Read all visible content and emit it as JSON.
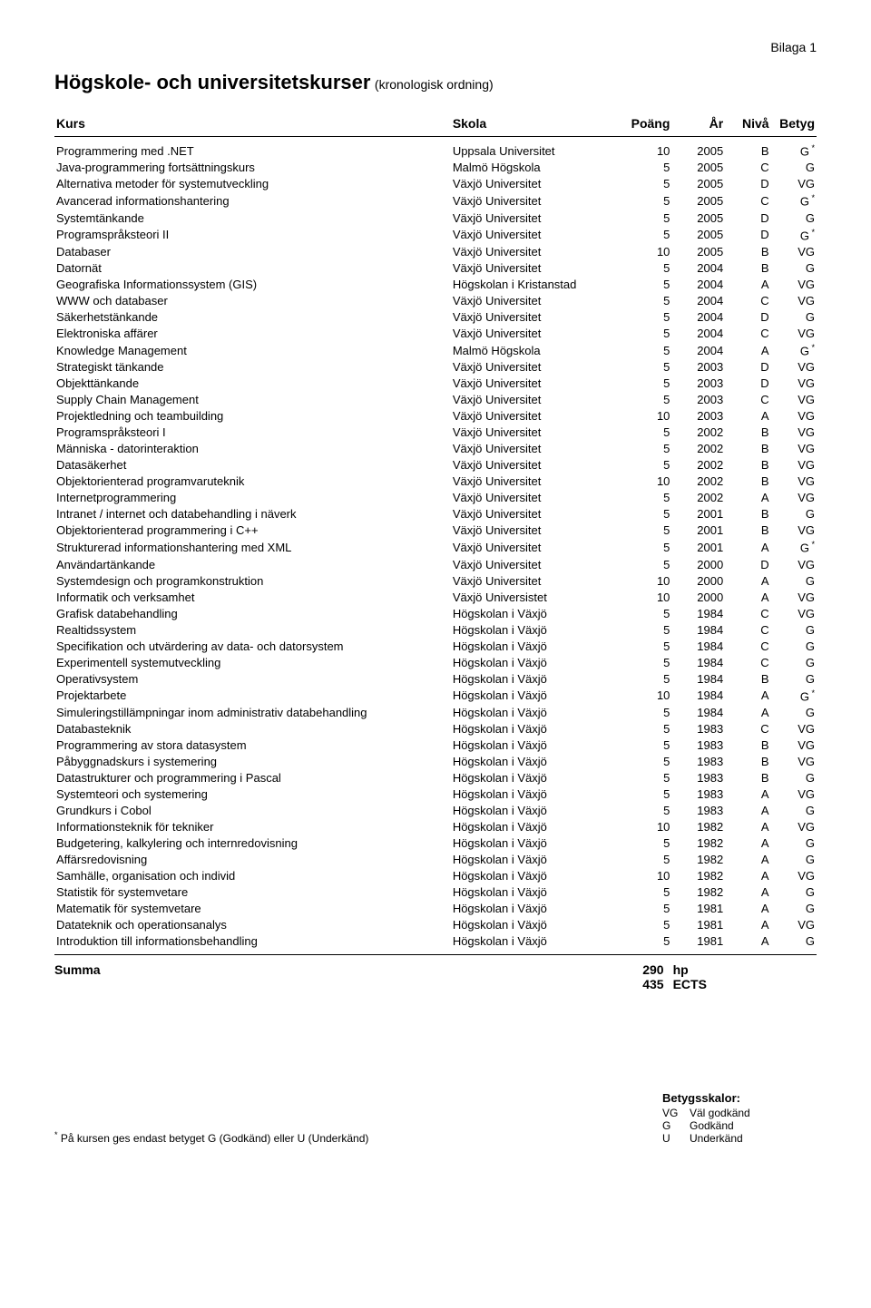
{
  "appendix_label": "Bilaga 1",
  "title_main": "Högskole- och universitetskurser",
  "title_sub": "(kronologisk ordning)",
  "columns": [
    "Kurs",
    "Skola",
    "Poäng",
    "År",
    "Nivå",
    "Betyg"
  ],
  "rows": [
    {
      "kurs": "Programmering med .NET",
      "skola": "Uppsala Universitet",
      "poang": "10",
      "ar": "2005",
      "niva": "B",
      "betyg": "G",
      "star": true
    },
    {
      "kurs": "Java-programmering fortsättningskurs",
      "skola": "Malmö Högskola",
      "poang": "5",
      "ar": "2005",
      "niva": "C",
      "betyg": "G",
      "star": false
    },
    {
      "kurs": "Alternativa metoder för systemutveckling",
      "skola": "Växjö Universitet",
      "poang": "5",
      "ar": "2005",
      "niva": "D",
      "betyg": "VG",
      "star": false
    },
    {
      "kurs": "Avancerad informationshantering",
      "skola": "Växjö Universitet",
      "poang": "5",
      "ar": "2005",
      "niva": "C",
      "betyg": "G",
      "star": true
    },
    {
      "kurs": "Systemtänkande",
      "skola": "Växjö Universitet",
      "poang": "5",
      "ar": "2005",
      "niva": "D",
      "betyg": "G",
      "star": false
    },
    {
      "kurs": "Programspråksteori II",
      "skola": "Växjö Universitet",
      "poang": "5",
      "ar": "2005",
      "niva": "D",
      "betyg": "G",
      "star": true
    },
    {
      "kurs": "Databaser",
      "skola": "Växjö Universitet",
      "poang": "10",
      "ar": "2005",
      "niva": "B",
      "betyg": "VG",
      "star": false
    },
    {
      "kurs": "Datornät",
      "skola": "Växjö Universitet",
      "poang": "5",
      "ar": "2004",
      "niva": "B",
      "betyg": "G",
      "star": false
    },
    {
      "kurs": "Geografiska Informationssystem (GIS)",
      "skola": "Högskolan i Kristanstad",
      "poang": "5",
      "ar": "2004",
      "niva": "A",
      "betyg": "VG",
      "star": false
    },
    {
      "kurs": "WWW och databaser",
      "skola": "Växjö Universitet",
      "poang": "5",
      "ar": "2004",
      "niva": "C",
      "betyg": "VG",
      "star": false
    },
    {
      "kurs": "Säkerhetstänkande",
      "skola": "Växjö Universitet",
      "poang": "5",
      "ar": "2004",
      "niva": "D",
      "betyg": "G",
      "star": false
    },
    {
      "kurs": "Elektroniska affärer",
      "skola": "Växjö Universitet",
      "poang": "5",
      "ar": "2004",
      "niva": "C",
      "betyg": "VG",
      "star": false
    },
    {
      "kurs": "Knowledge Management",
      "skola": "Malmö Högskola",
      "poang": "5",
      "ar": "2004",
      "niva": "A",
      "betyg": "G",
      "star": true
    },
    {
      "kurs": "Strategiskt tänkande",
      "skola": "Växjö Universitet",
      "poang": "5",
      "ar": "2003",
      "niva": "D",
      "betyg": "VG",
      "star": false
    },
    {
      "kurs": "Objekttänkande",
      "skola": "Växjö Universitet",
      "poang": "5",
      "ar": "2003",
      "niva": "D",
      "betyg": "VG",
      "star": false
    },
    {
      "kurs": "Supply Chain Management",
      "skola": "Växjö Universitet",
      "poang": "5",
      "ar": "2003",
      "niva": "C",
      "betyg": "VG",
      "star": false
    },
    {
      "kurs": "Projektledning och teambuilding",
      "skola": "Växjö Universitet",
      "poang": "10",
      "ar": "2003",
      "niva": "A",
      "betyg": "VG",
      "star": false
    },
    {
      "kurs": "Programspråksteori I",
      "skola": "Växjö Universitet",
      "poang": "5",
      "ar": "2002",
      "niva": "B",
      "betyg": "VG",
      "star": false
    },
    {
      "kurs": "Människa - datorinteraktion",
      "skola": "Växjö Universitet",
      "poang": "5",
      "ar": "2002",
      "niva": "B",
      "betyg": "VG",
      "star": false
    },
    {
      "kurs": "Datasäkerhet",
      "skola": "Växjö Universitet",
      "poang": "5",
      "ar": "2002",
      "niva": "B",
      "betyg": "VG",
      "star": false
    },
    {
      "kurs": "Objektorienterad programvaruteknik",
      "skola": "Växjö Universitet",
      "poang": "10",
      "ar": "2002",
      "niva": "B",
      "betyg": "VG",
      "star": false
    },
    {
      "kurs": "Internetprogrammering",
      "skola": "Växjö Universitet",
      "poang": "5",
      "ar": "2002",
      "niva": "A",
      "betyg": "VG",
      "star": false
    },
    {
      "kurs": "Intranet / internet och databehandling i näverk",
      "skola": "Växjö Universitet",
      "poang": "5",
      "ar": "2001",
      "niva": "B",
      "betyg": "G",
      "star": false
    },
    {
      "kurs": "Objektorienterad programmering i C++",
      "skola": "Växjö Universitet",
      "poang": "5",
      "ar": "2001",
      "niva": "B",
      "betyg": "VG",
      "star": false
    },
    {
      "kurs": "Strukturerad informationshantering med XML",
      "skola": "Växjö Universitet",
      "poang": "5",
      "ar": "2001",
      "niva": "A",
      "betyg": "G",
      "star": true
    },
    {
      "kurs": "Användartänkande",
      "skola": "Växjö Universitet",
      "poang": "5",
      "ar": "2000",
      "niva": "D",
      "betyg": "VG",
      "star": false
    },
    {
      "kurs": "Systemdesign och programkonstruktion",
      "skola": "Växjö Universitet",
      "poang": "10",
      "ar": "2000",
      "niva": "A",
      "betyg": "G",
      "star": false
    },
    {
      "kurs": "Informatik och verksamhet",
      "skola": "Växjö Universistet",
      "poang": "10",
      "ar": "2000",
      "niva": "A",
      "betyg": "VG",
      "star": false
    },
    {
      "kurs": "Grafisk databehandling",
      "skola": "Högskolan i Växjö",
      "poang": "5",
      "ar": "1984",
      "niva": "C",
      "betyg": "VG",
      "star": false
    },
    {
      "kurs": "Realtidssystem",
      "skola": "Högskolan i Växjö",
      "poang": "5",
      "ar": "1984",
      "niva": "C",
      "betyg": "G",
      "star": false
    },
    {
      "kurs": "Specifikation och utvärdering av data- och datorsystem",
      "skola": "Högskolan i Växjö",
      "poang": "5",
      "ar": "1984",
      "niva": "C",
      "betyg": "G",
      "star": false
    },
    {
      "kurs": "Experimentell systemutveckling",
      "skola": "Högskolan i Växjö",
      "poang": "5",
      "ar": "1984",
      "niva": "C",
      "betyg": "G",
      "star": false
    },
    {
      "kurs": "Operativsystem",
      "skola": "Högskolan i Växjö",
      "poang": "5",
      "ar": "1984",
      "niva": "B",
      "betyg": "G",
      "star": false
    },
    {
      "kurs": "Projektarbete",
      "skola": "Högskolan i Växjö",
      "poang": "10",
      "ar": "1984",
      "niva": "A",
      "betyg": "G",
      "star": true
    },
    {
      "kurs": "Simuleringstillämpningar inom administrativ databehandling",
      "skola": "Högskolan i Växjö",
      "poang": "5",
      "ar": "1984",
      "niva": "A",
      "betyg": "G",
      "star": false
    },
    {
      "kurs": "Databasteknik",
      "skola": "Högskolan i Växjö",
      "poang": "5",
      "ar": "1983",
      "niva": "C",
      "betyg": "VG",
      "star": false
    },
    {
      "kurs": "Programmering av stora datasystem",
      "skola": "Högskolan i Växjö",
      "poang": "5",
      "ar": "1983",
      "niva": "B",
      "betyg": "VG",
      "star": false
    },
    {
      "kurs": "Påbyggnadskurs i systemering",
      "skola": "Högskolan i Växjö",
      "poang": "5",
      "ar": "1983",
      "niva": "B",
      "betyg": "VG",
      "star": false
    },
    {
      "kurs": "Datastrukturer och programmering i Pascal",
      "skola": "Högskolan i Växjö",
      "poang": "5",
      "ar": "1983",
      "niva": "B",
      "betyg": "G",
      "star": false
    },
    {
      "kurs": "Systemteori och systemering",
      "skola": "Högskolan i Växjö",
      "poang": "5",
      "ar": "1983",
      "niva": "A",
      "betyg": "VG",
      "star": false
    },
    {
      "kurs": "Grundkurs i Cobol",
      "skola": "Högskolan i Växjö",
      "poang": "5",
      "ar": "1983",
      "niva": "A",
      "betyg": "G",
      "star": false
    },
    {
      "kurs": "Informationsteknik för tekniker",
      "skola": "Högskolan i Växjö",
      "poang": "10",
      "ar": "1982",
      "niva": "A",
      "betyg": "VG",
      "star": false
    },
    {
      "kurs": "Budgetering, kalkylering och internredovisning",
      "skola": "Högskolan i Växjö",
      "poang": "5",
      "ar": "1982",
      "niva": "A",
      "betyg": "G",
      "star": false
    },
    {
      "kurs": "Affärsredovisning",
      "skola": "Högskolan i Växjö",
      "poang": "5",
      "ar": "1982",
      "niva": "A",
      "betyg": "G",
      "star": false
    },
    {
      "kurs": "Samhälle, organisation och individ",
      "skola": "Högskolan i Växjö",
      "poang": "10",
      "ar": "1982",
      "niva": "A",
      "betyg": "VG",
      "star": false
    },
    {
      "kurs": "Statistik för systemvetare",
      "skola": "Högskolan i Växjö",
      "poang": "5",
      "ar": "1982",
      "niva": "A",
      "betyg": "G",
      "star": false
    },
    {
      "kurs": "Matematik för systemvetare",
      "skola": "Högskolan i Växjö",
      "poang": "5",
      "ar": "1981",
      "niva": "A",
      "betyg": "G",
      "star": false
    },
    {
      "kurs": "Datateknik och operationsanalys",
      "skola": "Högskolan i Växjö",
      "poang": "5",
      "ar": "1981",
      "niva": "A",
      "betyg": "VG",
      "star": false
    },
    {
      "kurs": "Introduktion till informationsbehandling",
      "skola": "Högskolan i Växjö",
      "poang": "5",
      "ar": "1981",
      "niva": "A",
      "betyg": "G",
      "star": false
    }
  ],
  "sum": {
    "label": "Summa",
    "hp_value": "290",
    "hp_unit": "hp",
    "ects_value": "435",
    "ects_unit": "ECTS"
  },
  "footnote": {
    "star": "*",
    "text": " På kursen ges endast betyget G (Godkänd) eller U (Underkänd)"
  },
  "scale": {
    "heading": "Betygsskalor:",
    "items": [
      {
        "code": "VG",
        "label": "Väl godkänd"
      },
      {
        "code": "G",
        "label": "Godkänd"
      },
      {
        "code": "U",
        "label": "Underkänd"
      }
    ]
  }
}
